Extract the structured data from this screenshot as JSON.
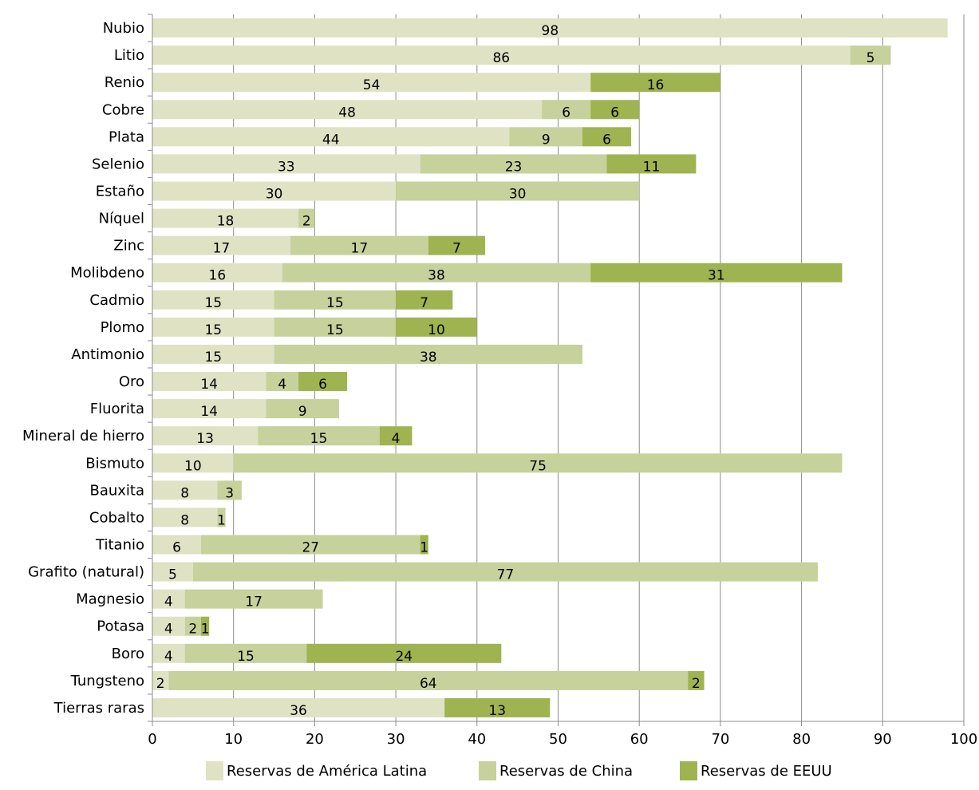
{
  "chart_data": {
    "type": "bar",
    "orientation": "horizontal",
    "stacked": true,
    "title": "",
    "xlabel": "",
    "ylabel": "",
    "xlim": [
      0,
      100
    ],
    "xticks": [
      0,
      10,
      20,
      30,
      40,
      50,
      60,
      70,
      80,
      90,
      100
    ],
    "grid": "vertical",
    "legend_position": "bottom",
    "categories": [
      "Nubio",
      "Litio",
      "Renio",
      "Cobre",
      "Plata",
      "Selenio",
      "Estaño",
      "Níquel",
      "Zinc",
      "Molibdeno",
      "Cadmio",
      "Plomo",
      "Antimonio",
      "Oro",
      "Fluorita",
      "Mineral de hierro",
      "Bismuto",
      "Bauxita",
      "Cobalto",
      "Titanio",
      "Grafito (natural)",
      "Magnesio",
      "Potasa",
      "Boro",
      "Tungsteno",
      "Tierras raras"
    ],
    "series": [
      {
        "name": "Reservas de América Latina",
        "color": "#dfe3c4",
        "values": [
          98,
          86,
          54,
          48,
          44,
          33,
          30,
          18,
          17,
          16,
          15,
          15,
          15,
          14,
          14,
          13,
          10,
          8,
          8,
          6,
          5,
          4,
          4,
          4,
          2,
          36
        ]
      },
      {
        "name": "Reservas de China",
        "color": "#c6d19c",
        "values": [
          null,
          5,
          null,
          6,
          9,
          23,
          30,
          2,
          17,
          38,
          15,
          15,
          38,
          4,
          9,
          15,
          75,
          3,
          1,
          27,
          77,
          17,
          2,
          15,
          64,
          null
        ]
      },
      {
        "name": "Reservas de EEUU",
        "color": "#9fb350",
        "values": [
          null,
          null,
          16,
          6,
          6,
          11,
          null,
          null,
          7,
          31,
          7,
          10,
          null,
          6,
          null,
          4,
          null,
          null,
          null,
          1,
          null,
          null,
          1,
          24,
          2,
          13
        ]
      }
    ]
  }
}
